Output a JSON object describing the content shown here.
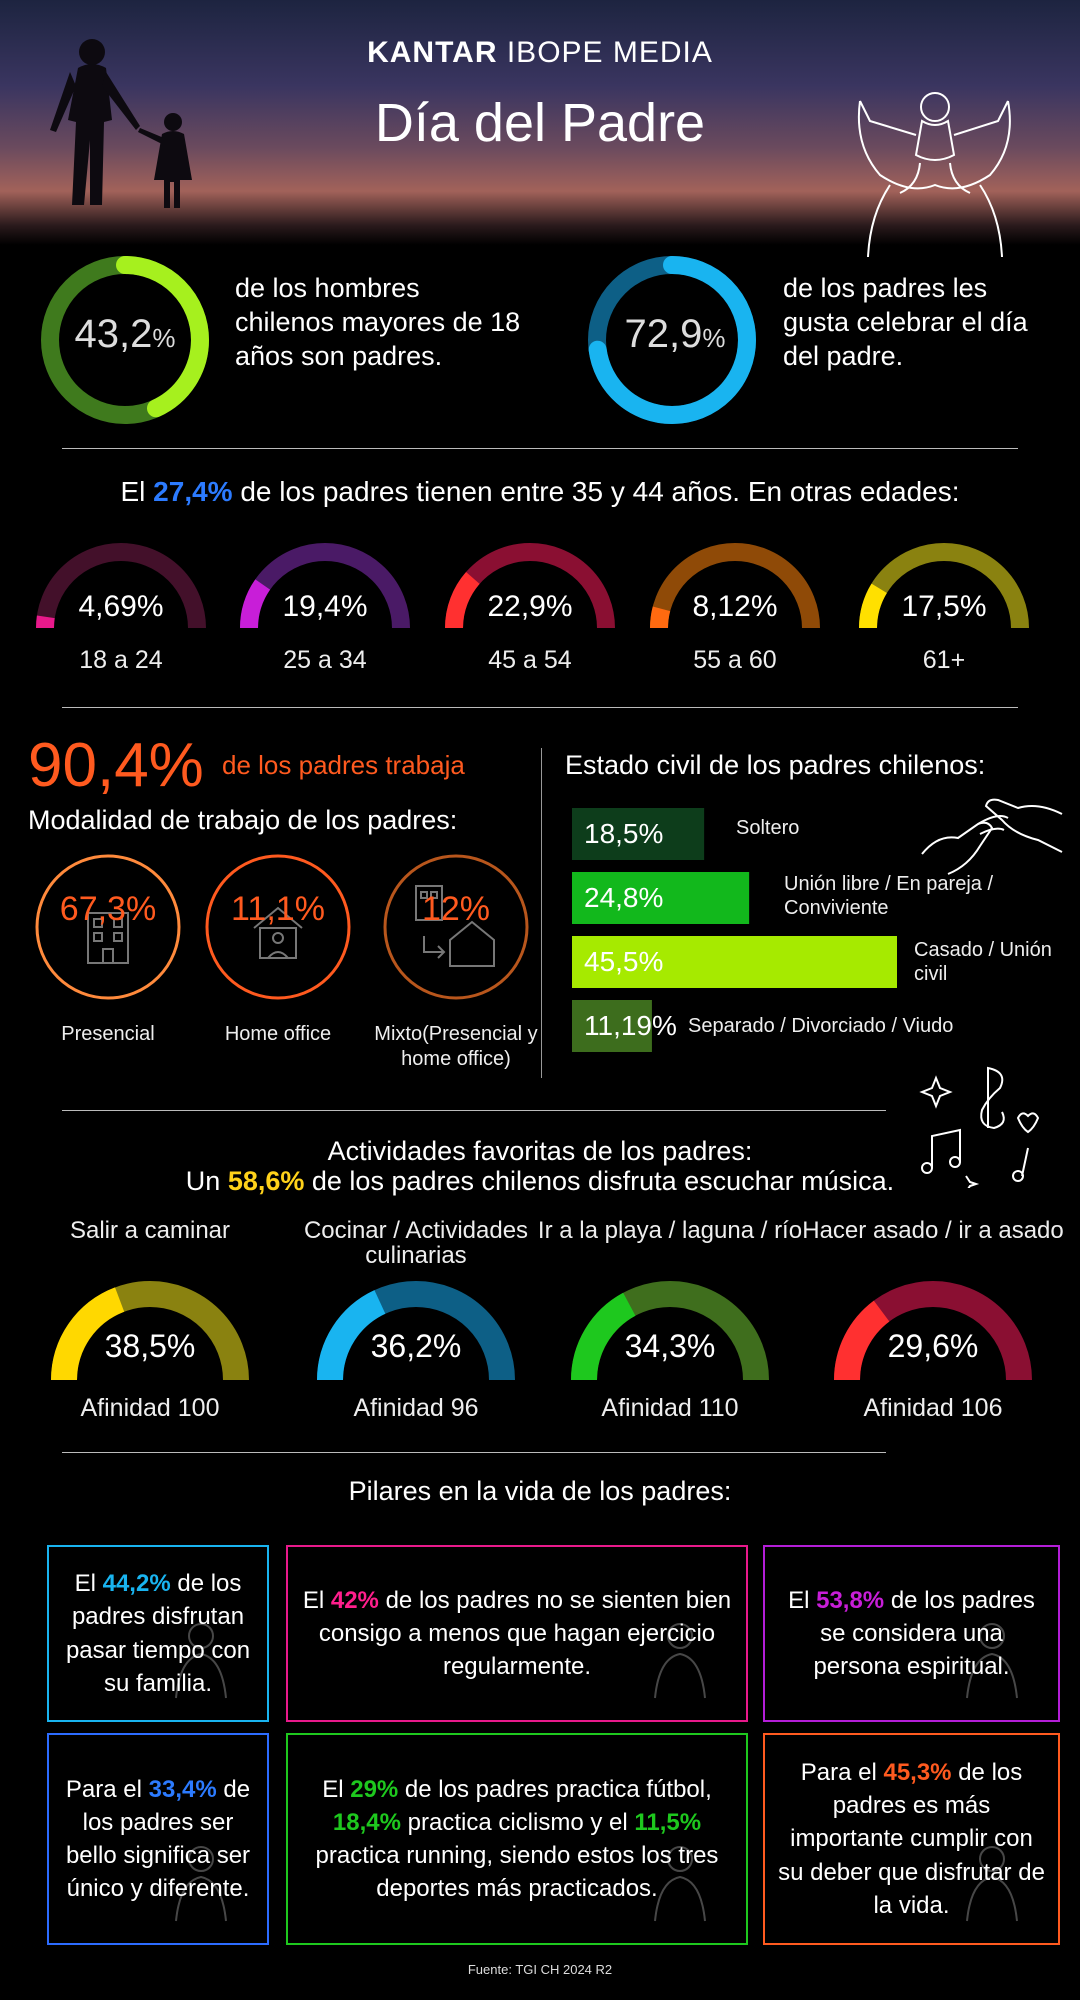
{
  "header": {
    "brand_bold": "KANTAR",
    "brand_rest": " IBOPE MEDIA",
    "title": "Día del Padre"
  },
  "top_stats": [
    {
      "value": "43,2",
      "unit": "%",
      "fraction": 0.432,
      "text": "de los hombres chilenos mayores de 18 años son padres.",
      "color": "#a6f01e",
      "track": "#3f7a1d"
    },
    {
      "value": "72,9",
      "unit": "%",
      "fraction": 0.729,
      "text": "de los padres les gusta celebrar el día del padre.",
      "color": "#19b4f0",
      "track": "#0d5f86"
    }
  ],
  "age": {
    "intro_pre": "El ",
    "intro_highlight": "27,4%",
    "intro_post": " de los padres tienen entre 35 y 44 años. En otras edades:",
    "highlight_color": "#2c7bff",
    "groups": [
      {
        "value": "4,69%",
        "fraction": 0.0469,
        "label": "18 a 24",
        "color": "#e8198b",
        "track": "#43102a"
      },
      {
        "value": "19,4%",
        "fraction": 0.194,
        "label": "25 a 34",
        "color": "#c81ed8",
        "track": "#4a1a66"
      },
      {
        "value": "22,9%",
        "fraction": 0.229,
        "label": "45 a 54",
        "color": "#ff3030",
        "track": "#8a0f32"
      },
      {
        "value": "8,12%",
        "fraction": 0.0812,
        "label": "55 a 60",
        "color": "#ff6a10",
        "track": "#8f4a07"
      },
      {
        "value": "17,5%",
        "fraction": 0.175,
        "label": "61+",
        "color": "#ffe000",
        "track": "#8a8210"
      }
    ]
  },
  "work": {
    "big_value": "90,4%",
    "big_text": "de los padres trabaja",
    "subtitle": "Modalidad de trabajo de los padres:",
    "modes": [
      {
        "value": "67,3%",
        "label": "Presencial",
        "ring": "#ff8a3c"
      },
      {
        "value": "11,1%",
        "label": "Home office",
        "ring": "#ff5a1f"
      },
      {
        "value": "12%",
        "label": "Mixto(Presencial y home office)",
        "ring": "#b8561c"
      }
    ]
  },
  "civil": {
    "title": "Estado civil de los padres chilenos:",
    "bars": [
      {
        "value": "18,5%",
        "fraction": 0.185,
        "label": "Soltero",
        "color": "#0d3d1b"
      },
      {
        "value": "24,8%",
        "fraction": 0.248,
        "label": "Unión libre / En pareja / Conviviente",
        "color": "#12b81c"
      },
      {
        "value": "45,5%",
        "fraction": 0.455,
        "label": "Casado / Unión civil",
        "color": "#a6ea00"
      },
      {
        "value": "11,19%",
        "fraction": 0.1119,
        "label": "Separado / Divorciado / Viudo",
        "color": "#3d6d1d"
      }
    ]
  },
  "activities": {
    "title": "Actividades favoritas de los padres:",
    "sub_pre": "Un ",
    "sub_highlight": "58,6%",
    "sub_post": " de los padres chilenos disfruta escuchar música.",
    "highlight_color": "#ffd21a",
    "items": [
      {
        "label": "Salir a caminar",
        "value": "38,5%",
        "fraction": 0.385,
        "affinity": "Afinidad 100",
        "color": "#ffd800",
        "track": "#8a8210"
      },
      {
        "label": "Cocinar / Actividades culinarias",
        "value": "36,2%",
        "fraction": 0.362,
        "affinity": "Afinidad 96",
        "color": "#19b4f0",
        "track": "#0d5f86"
      },
      {
        "label": "Ir a la playa / laguna / río",
        "value": "34,3%",
        "fraction": 0.343,
        "affinity": "Afinidad 110",
        "color": "#1ec81e",
        "track": "#3f6e1d"
      },
      {
        "label": "Hacer asado / ir a asado",
        "value": "29,6%",
        "fraction": 0.296,
        "affinity": "Afinidad 106",
        "color": "#ff3030",
        "track": "#8a0f32"
      }
    ]
  },
  "pillars": {
    "title": "Pilares en la vida de los padres:",
    "boxes": [
      {
        "border": "#19b4f0",
        "parts": [
          {
            "t": "El "
          },
          {
            "t": "44,2%",
            "c": "#19b4f0"
          },
          {
            "t": " de los padres disfrutan pasar tiempo con su familia."
          }
        ]
      },
      {
        "border": "#e8198b",
        "parts": [
          {
            "t": "El "
          },
          {
            "t": "42%",
            "c": "#ff1e8c"
          },
          {
            "t": " de los padres no se sienten bien consigo a menos que hagan ejercicio regularmente."
          }
        ]
      },
      {
        "border": "#b41ed8",
        "parts": [
          {
            "t": "El "
          },
          {
            "t": "53,8%",
            "c": "#c81ed8"
          },
          {
            "t": " de los padres se considera una persona espiritual."
          }
        ]
      },
      {
        "border": "#2c6cff",
        "parts": [
          {
            "t": "Para el "
          },
          {
            "t": "33,4%",
            "c": "#2c7bff"
          },
          {
            "t": " de los padres ser bello significa ser único y diferente."
          }
        ]
      },
      {
        "border": "#1ec81e",
        "parts": [
          {
            "t": "El "
          },
          {
            "t": "29%",
            "c": "#1ec81e"
          },
          {
            "t": " de los padres practica fútbol, "
          },
          {
            "t": "18,4%",
            "c": "#1ec81e"
          },
          {
            "t": " practica ciclismo y el "
          },
          {
            "t": "11,5%",
            "c": "#1ec81e"
          },
          {
            "t": " practica running, siendo estos los tres deportes más practicados."
          }
        ]
      },
      {
        "border": "#ff5a1f",
        "parts": [
          {
            "t": "Para el "
          },
          {
            "t": "45,3%",
            "c": "#ff5a1f"
          },
          {
            "t": " de los padres es más importante cumplir con su deber que disfrutar de la vida."
          }
        ]
      }
    ]
  },
  "footer": {
    "source": "Fuente: TGI CH 2024 R2"
  },
  "icons": [
    "father-daughter-silhouette",
    "father-child-shoulders-icon",
    "building-icon",
    "home-office-icon",
    "house-building-icon",
    "holding-hands-icon",
    "music-notes-icon",
    "family-icon",
    "running-icon",
    "meditation-icon",
    "fingerprint-icon",
    "soccer-player-icon",
    "checklist-icon"
  ]
}
